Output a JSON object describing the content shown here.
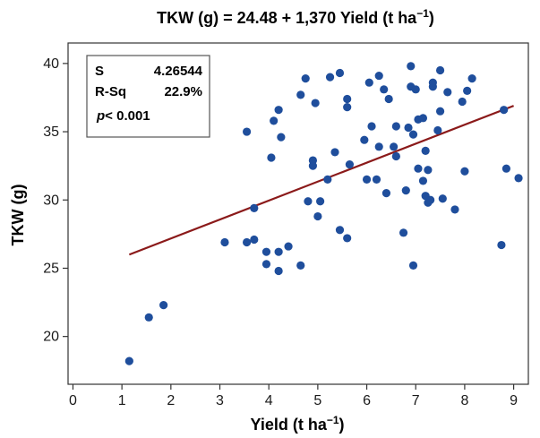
{
  "chart_data": {
    "type": "scatter",
    "title": "TKW (g) = 24.48 + 1,370 Yield (t ha⁻¹)",
    "title_parts": {
      "main": "TKW (g) = 24.48 + 1,370 Yield (t ha",
      "sup": "−1",
      "close": ")"
    },
    "xlabel": "Yield (t ha",
    "xlabel_sup": "−1",
    "xlabel_close": ")",
    "ylabel": "TKW (g)",
    "xlim": [
      -0.1,
      9.3
    ],
    "ylim": [
      16.5,
      41.5
    ],
    "xticks": [
      0,
      1,
      2,
      3,
      4,
      5,
      6,
      7,
      8,
      9
    ],
    "yticks": [
      20,
      25,
      30,
      35,
      40
    ],
    "grid": false,
    "colors": {
      "points": "#1f4e9c",
      "fit_line": "#8b1a1a",
      "box": "#555555"
    },
    "stats": {
      "s_label": "S",
      "s_value": "4.26544",
      "rsq_label": "R-Sq",
      "rsq_value": "22.9%",
      "p_label": "p",
      "p_value": "< 0.001"
    },
    "fit_line": {
      "x": [
        1.15,
        9.0
      ],
      "y": [
        26.0,
        36.9
      ]
    },
    "points": [
      [
        1.15,
        18.2
      ],
      [
        1.55,
        21.4
      ],
      [
        1.85,
        22.3
      ],
      [
        3.1,
        26.9
      ],
      [
        3.55,
        26.9
      ],
      [
        3.55,
        35.0
      ],
      [
        3.7,
        27.1
      ],
      [
        3.7,
        29.4
      ],
      [
        3.95,
        26.2
      ],
      [
        3.95,
        25.3
      ],
      [
        4.05,
        33.1
      ],
      [
        4.1,
        35.8
      ],
      [
        4.2,
        26.2
      ],
      [
        4.2,
        24.8
      ],
      [
        4.2,
        36.6
      ],
      [
        4.25,
        34.6
      ],
      [
        4.4,
        26.6
      ],
      [
        4.65,
        25.2
      ],
      [
        4.65,
        37.7
      ],
      [
        4.75,
        38.9
      ],
      [
        4.8,
        29.9
      ],
      [
        4.9,
        32.5
      ],
      [
        4.9,
        32.9
      ],
      [
        4.95,
        37.1
      ],
      [
        5.0,
        28.8
      ],
      [
        5.05,
        29.9
      ],
      [
        5.2,
        31.5
      ],
      [
        5.25,
        39.0
      ],
      [
        5.35,
        33.5
      ],
      [
        5.45,
        39.3
      ],
      [
        5.45,
        27.8
      ],
      [
        5.6,
        37.4
      ],
      [
        5.6,
        36.8
      ],
      [
        5.6,
        27.2
      ],
      [
        5.65,
        32.6
      ],
      [
        5.95,
        34.4
      ],
      [
        6.0,
        31.5
      ],
      [
        6.05,
        38.6
      ],
      [
        6.1,
        35.4
      ],
      [
        6.2,
        31.5
      ],
      [
        6.25,
        39.1
      ],
      [
        6.25,
        33.9
      ],
      [
        6.35,
        38.1
      ],
      [
        6.4,
        30.5
      ],
      [
        6.45,
        37.4
      ],
      [
        6.55,
        33.9
      ],
      [
        6.6,
        35.4
      ],
      [
        6.6,
        33.2
      ],
      [
        6.75,
        27.6
      ],
      [
        6.8,
        30.7
      ],
      [
        6.85,
        35.3
      ],
      [
        6.9,
        38.3
      ],
      [
        6.9,
        39.8
      ],
      [
        6.95,
        34.8
      ],
      [
        6.95,
        25.2
      ],
      [
        7.0,
        38.1
      ],
      [
        7.05,
        32.3
      ],
      [
        7.05,
        35.9
      ],
      [
        7.15,
        36.0
      ],
      [
        7.15,
        31.4
      ],
      [
        7.2,
        30.3
      ],
      [
        7.2,
        33.6
      ],
      [
        7.25,
        29.8
      ],
      [
        7.25,
        32.2
      ],
      [
        7.3,
        30.0
      ],
      [
        7.35,
        38.3
      ],
      [
        7.35,
        38.6
      ],
      [
        7.45,
        35.1
      ],
      [
        7.5,
        39.5
      ],
      [
        7.5,
        36.5
      ],
      [
        7.55,
        30.1
      ],
      [
        7.65,
        37.9
      ],
      [
        7.8,
        29.3
      ],
      [
        7.95,
        37.2
      ],
      [
        8.0,
        32.1
      ],
      [
        8.05,
        38.0
      ],
      [
        8.15,
        38.9
      ],
      [
        8.75,
        26.7
      ],
      [
        8.8,
        36.6
      ],
      [
        8.85,
        32.3
      ],
      [
        9.1,
        31.6
      ]
    ]
  }
}
